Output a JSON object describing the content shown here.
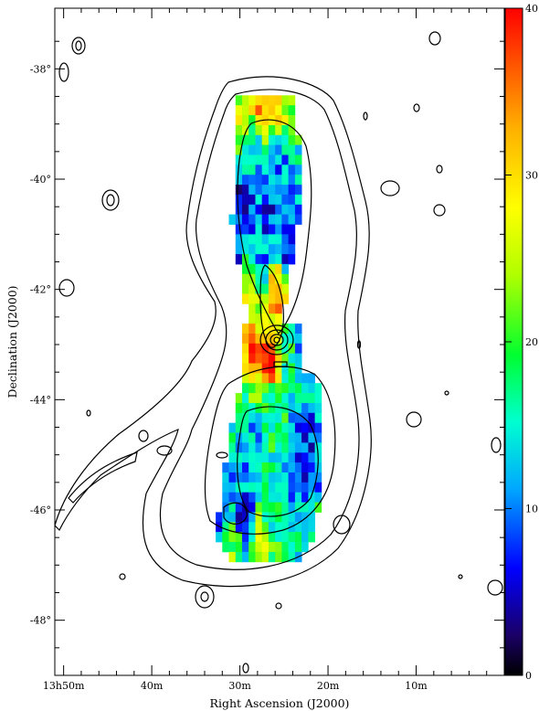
{
  "chart_data": {
    "type": "heatmap",
    "title": "",
    "xlabel": "Right Ascension (J2000)",
    "ylabel": "Declination (J2000)",
    "x_ticks": [
      {
        "ra_min": 50,
        "label": "13h50m"
      },
      {
        "ra_min": 40,
        "label": "40m"
      },
      {
        "ra_min": 30,
        "label": "30m"
      },
      {
        "ra_min": 20,
        "label": "20m"
      },
      {
        "ra_min": 10,
        "label": "10m"
      }
    ],
    "y_ticks": [
      {
        "dec": -38,
        "label": "-38°"
      },
      {
        "dec": -40,
        "label": "-40°"
      },
      {
        "dec": -42,
        "label": "-42°"
      },
      {
        "dec": -44,
        "label": "-44°"
      },
      {
        "dec": -46,
        "label": "-46°"
      },
      {
        "dec": -48,
        "label": "-48°"
      }
    ],
    "xlim": [
      51,
      0
    ],
    "ylim": [
      -49,
      -36.9
    ],
    "colorbar": {
      "min": 0,
      "max": 40,
      "ticks": [
        0,
        10,
        20,
        30,
        40
      ]
    },
    "grid": false,
    "source_core": {
      "ra_min": 25.5,
      "dec": -43.0
    },
    "map_points": [
      [
        28,
        -38.5,
        32
      ],
      [
        26,
        -38.5,
        28
      ],
      [
        24,
        -38.7,
        22
      ],
      [
        30,
        -38.8,
        25
      ],
      [
        22,
        -39.0,
        20
      ],
      [
        32,
        -39.5,
        18
      ],
      [
        29,
        -39.5,
        12
      ],
      [
        26,
        -39.7,
        10
      ],
      [
        23,
        -39.6,
        14
      ],
      [
        20,
        -39.8,
        22
      ],
      [
        33,
        -40.5,
        6
      ],
      [
        30,
        -40.4,
        5
      ],
      [
        27,
        -40.5,
        8
      ],
      [
        24,
        -40.3,
        12
      ],
      [
        21,
        -40.5,
        20
      ],
      [
        34,
        -41.0,
        18
      ],
      [
        31,
        -41.3,
        9
      ],
      [
        28,
        -41.4,
        11
      ],
      [
        25,
        -41.2,
        7
      ],
      [
        22,
        -41.0,
        22
      ],
      [
        32,
        -41.8,
        20
      ],
      [
        29,
        -41.9,
        26
      ],
      [
        26,
        -42.0,
        32
      ],
      [
        23,
        -42.0,
        14
      ],
      [
        30,
        -42.5,
        28
      ],
      [
        27,
        -42.4,
        30
      ],
      [
        24,
        -42.5,
        12
      ],
      [
        29,
        -43.1,
        35
      ],
      [
        27,
        -43.3,
        38
      ],
      [
        25,
        -43.2,
        18
      ],
      [
        23,
        -43.3,
        10
      ],
      [
        33,
        -43.8,
        30
      ],
      [
        30,
        -43.9,
        18
      ],
      [
        27,
        -44.0,
        16
      ],
      [
        24,
        -43.8,
        14
      ],
      [
        21,
        -43.9,
        15
      ],
      [
        19,
        -44.0,
        20
      ],
      [
        35,
        -44.5,
        22
      ],
      [
        32,
        -44.6,
        14
      ],
      [
        29,
        -44.7,
        12
      ],
      [
        26,
        -44.5,
        18
      ],
      [
        23,
        -44.6,
        8
      ],
      [
        20,
        -44.7,
        10
      ],
      [
        36,
        -45.3,
        20
      ],
      [
        33,
        -45.2,
        8
      ],
      [
        30,
        -45.4,
        11
      ],
      [
        27,
        -45.3,
        16
      ],
      [
        24,
        -45.2,
        7
      ],
      [
        21,
        -45.3,
        9
      ],
      [
        19,
        -45.5,
        12
      ],
      [
        36,
        -46.0,
        18
      ],
      [
        33,
        -46.1,
        10
      ],
      [
        30,
        -46.0,
        6
      ],
      [
        27,
        -46.0,
        17
      ],
      [
        24,
        -46.1,
        14
      ],
      [
        21,
        -46.2,
        19
      ],
      [
        34,
        -46.5,
        12
      ],
      [
        31,
        -46.6,
        22
      ],
      [
        28,
        -46.5,
        26
      ],
      [
        25,
        -46.4,
        18
      ]
    ]
  }
}
